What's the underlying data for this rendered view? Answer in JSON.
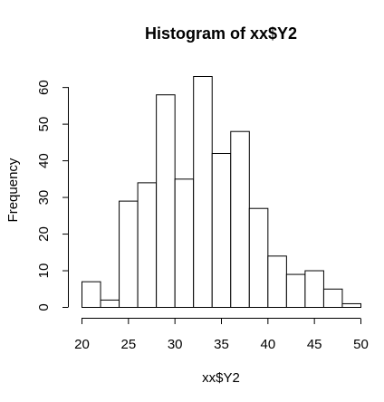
{
  "chart_data": {
    "type": "bar",
    "subtype": "histogram",
    "title": "Histogram of xx$Y2",
    "xlabel": "xx$Y2",
    "ylabel": "Frequency",
    "bins": [
      {
        "from": 20,
        "to": 22,
        "count": 7
      },
      {
        "from": 22,
        "to": 24,
        "count": 2
      },
      {
        "from": 24,
        "to": 26,
        "count": 29
      },
      {
        "from": 26,
        "to": 28,
        "count": 34
      },
      {
        "from": 28,
        "to": 30,
        "count": 58
      },
      {
        "from": 30,
        "to": 32,
        "count": 35
      },
      {
        "from": 32,
        "to": 34,
        "count": 63
      },
      {
        "from": 34,
        "to": 36,
        "count": 42
      },
      {
        "from": 36,
        "to": 38,
        "count": 48
      },
      {
        "from": 38,
        "to": 40,
        "count": 27
      },
      {
        "from": 40,
        "to": 42,
        "count": 14
      },
      {
        "from": 42,
        "to": 44,
        "count": 9
      },
      {
        "from": 44,
        "to": 46,
        "count": 10
      },
      {
        "from": 46,
        "to": 48,
        "count": 5
      },
      {
        "from": 48,
        "to": 50,
        "count": 1
      }
    ],
    "xlim": [
      20,
      50
    ],
    "ylim": [
      0,
      63
    ],
    "x_ticks": [
      "20",
      "25",
      "30",
      "35",
      "40",
      "45",
      "50"
    ],
    "y_ticks": [
      "0",
      "10",
      "20",
      "30",
      "40",
      "50",
      "60"
    ],
    "grid": false,
    "bar_fill": "#ffffff",
    "bar_stroke": "#000000"
  }
}
